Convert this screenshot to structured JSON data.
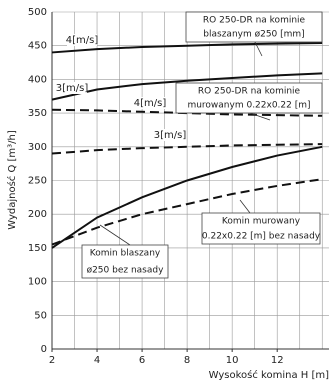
{
  "chart_data": {
    "type": "line",
    "y_label": "Wydajność Q [m³/h]",
    "x_label": "Wysokość komina H [m]",
    "x": [
      2,
      4,
      6,
      8,
      10,
      12,
      14
    ],
    "xlim": [
      2,
      14.3
    ],
    "xticks": [
      2,
      4,
      6,
      8,
      10,
      12
    ],
    "ylim": [
      0,
      500
    ],
    "yticks": [
      0,
      50,
      100,
      150,
      200,
      250,
      300,
      350,
      400,
      450,
      500
    ],
    "grid": true,
    "series": [
      {
        "label": "4[m/s]",
        "color": "#111",
        "dash": false,
        "values": [
          440,
          445,
          448,
          450,
          452,
          453,
          454
        ]
      },
      {
        "label": "3[m/s]",
        "color": "#111",
        "dash": false,
        "values": [
          370,
          385,
          393,
          398,
          402,
          406,
          409
        ]
      },
      {
        "label": "4[m/s]",
        "color": "#111",
        "dash": true,
        "values": [
          355,
          354,
          352,
          350,
          348,
          347,
          346
        ]
      },
      {
        "label": "3[m/s]",
        "color": "#111",
        "dash": true,
        "values": [
          290,
          295,
          298,
          300,
          302,
          303,
          304
        ]
      },
      {
        "color": "#111",
        "dash": false,
        "values": [
          150,
          195,
          225,
          250,
          270,
          287,
          300
        ]
      },
      {
        "color": "#111",
        "dash": true,
        "values": [
          155,
          180,
          200,
          215,
          230,
          242,
          252
        ]
      }
    ],
    "annotations": [
      {
        "lines": [
          "RO 250-DR na kominie",
          "blaszanym ø250 [mm]"
        ]
      },
      {
        "lines": [
          "RO 250-DR na kominie",
          "murowanym 0.22x0.22 [m]"
        ]
      },
      {
        "lines": [
          "Komin murowany",
          "0.22x0.22 [m] bez nasady"
        ]
      },
      {
        "lines": [
          "Komin blaszany",
          "ø250 bez nasady"
        ]
      }
    ]
  }
}
